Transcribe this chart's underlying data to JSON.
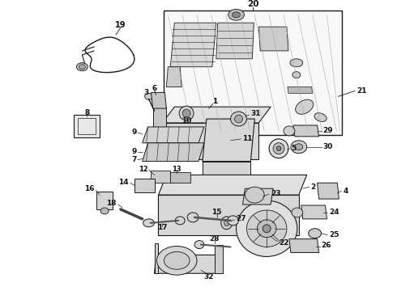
{
  "background_color": "#ffffff",
  "line_color": "#1a1a1a",
  "text_color": "#111111",
  "figure_width": 4.9,
  "figure_height": 3.6,
  "dpi": 100,
  "font_size": 6.5
}
